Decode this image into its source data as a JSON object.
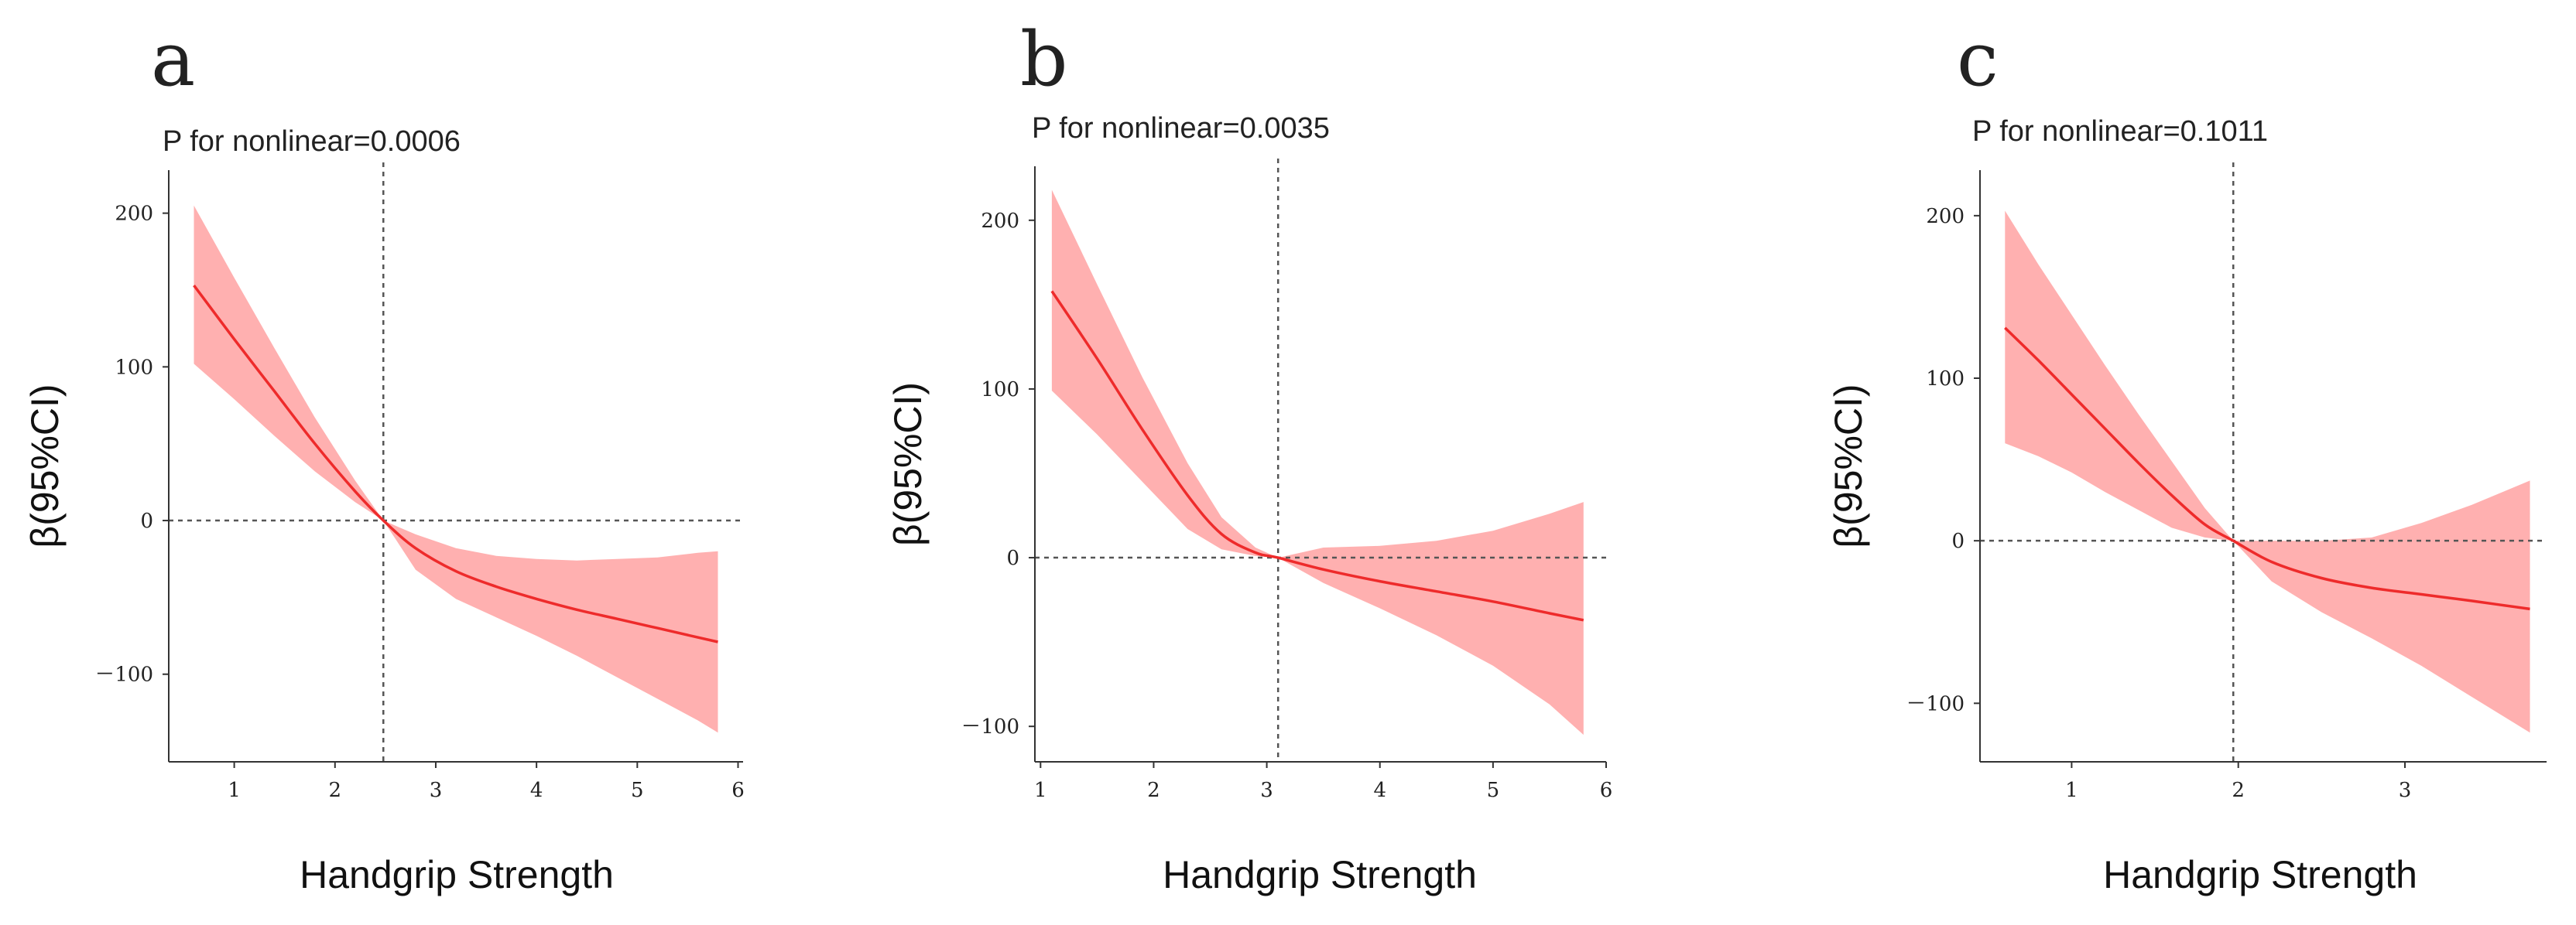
{
  "chart_data": [
    {
      "type": "line",
      "panel_label": "a",
      "annotation": "P for nonlinear=0.0006",
      "xlabel": "Handgrip Strength",
      "ylabel": "β(95%CI)",
      "xlim": [
        0.35,
        6.05
      ],
      "ylim": [
        -157,
        228
      ],
      "xticks": [
        1,
        2,
        3,
        4,
        5,
        6
      ],
      "yticks": [
        -100,
        0,
        100,
        200
      ],
      "ytick_labels": [
        "－100",
        "0",
        "100",
        "200"
      ],
      "ref_x": 2.48,
      "ref_y": 0,
      "series": [
        {
          "x": [
            0.6,
            1.0,
            1.4,
            1.8,
            2.2,
            2.48,
            2.8,
            3.2,
            3.6,
            4.0,
            4.4,
            4.8,
            5.2,
            5.6,
            5.8
          ],
          "y": [
            153,
            118,
            84,
            50,
            19,
            0,
            -18,
            -33,
            -43,
            -51,
            -58,
            -64,
            -70,
            -76,
            -79
          ],
          "lower": [
            102,
            79,
            55,
            32,
            12,
            0,
            -32,
            -51,
            -63,
            -75,
            -88,
            -102,
            -116,
            -130,
            -138
          ],
          "upper": [
            205,
            158,
            112,
            67,
            26,
            0,
            -9,
            -18,
            -23,
            -25,
            -26,
            -25,
            -24,
            -21,
            -20
          ]
        }
      ]
    },
    {
      "type": "line",
      "panel_label": "b",
      "annotation": "P for nonlinear=0.0035",
      "xlabel": "Handgrip Strength",
      "ylabel": "β(95%CI)",
      "xlim": [
        0.95,
        6.0
      ],
      "ylim": [
        -121,
        232
      ],
      "xticks": [
        1,
        2,
        3,
        4,
        5,
        6
      ],
      "yticks": [
        -100,
        0,
        100,
        200
      ],
      "ytick_labels": [
        "－100",
        "0",
        "100",
        "200"
      ],
      "ref_x": 3.1,
      "ref_y": 0,
      "series": [
        {
          "x": [
            1.1,
            1.5,
            1.9,
            2.3,
            2.6,
            2.9,
            3.1,
            3.5,
            4.0,
            4.5,
            5.0,
            5.5,
            5.8
          ],
          "y": [
            158,
            118,
            76,
            37,
            14,
            3,
            0,
            -7,
            -14,
            -20,
            -26,
            -33,
            -37
          ],
          "lower": [
            99,
            73,
            45,
            17,
            5,
            1,
            0,
            -15,
            -30,
            -46,
            -64,
            -87,
            -105
          ],
          "upper": [
            218,
            162,
            107,
            56,
            24,
            6,
            0,
            6,
            7,
            10,
            16,
            26,
            33
          ]
        }
      ]
    },
    {
      "type": "line",
      "panel_label": "c",
      "annotation": "P for nonlinear=0.1011",
      "xlabel": "Handgrip Strength",
      "ylabel": "β(95%CI)",
      "xlim": [
        0.45,
        3.85
      ],
      "ylim": [
        -136,
        228
      ],
      "xticks": [
        1,
        2,
        3
      ],
      "yticks": [
        -100,
        0,
        100,
        200
      ],
      "ytick_labels": [
        "－100",
        "0",
        "100",
        "200"
      ],
      "ref_x": 1.97,
      "ref_y": 0,
      "series": [
        {
          "x": [
            0.6,
            0.8,
            1.0,
            1.2,
            1.4,
            1.6,
            1.8,
            1.97,
            2.2,
            2.5,
            2.8,
            3.1,
            3.4,
            3.75
          ],
          "y": [
            131,
            111,
            90,
            69,
            48,
            28,
            10,
            0,
            -13,
            -23,
            -29,
            -33,
            -37,
            -42
          ],
          "lower": [
            60,
            52,
            42,
            30,
            19,
            8,
            2,
            0,
            -25,
            -44,
            -60,
            -77,
            -96,
            -118
          ],
          "upper": [
            203,
            170,
            139,
            108,
            78,
            49,
            20,
            0,
            0,
            0,
            2,
            11,
            22,
            37
          ]
        }
      ]
    }
  ]
}
